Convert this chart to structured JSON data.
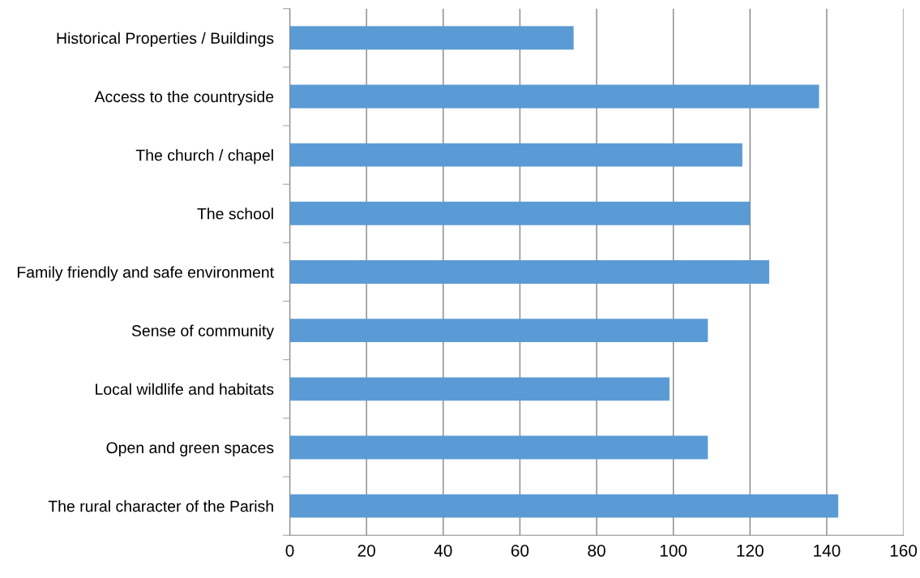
{
  "chart_data": {
    "type": "bar",
    "orientation": "horizontal",
    "categories": [
      "Historical Properties / Buildings",
      "Access to the countryside",
      "The church / chapel",
      "The school",
      "Family friendly and safe environment",
      "Sense of community",
      "Local wildlife and habitats",
      "Open and green spaces",
      "The rural character of the Parish"
    ],
    "values": [
      74,
      138,
      118,
      120,
      125,
      109,
      99,
      109,
      143
    ],
    "color": "#5b9bd5",
    "xlim": [
      0,
      160
    ],
    "xticks": [
      0,
      20,
      40,
      60,
      80,
      100,
      120,
      140,
      160
    ],
    "grid": "x",
    "legend": false
  }
}
